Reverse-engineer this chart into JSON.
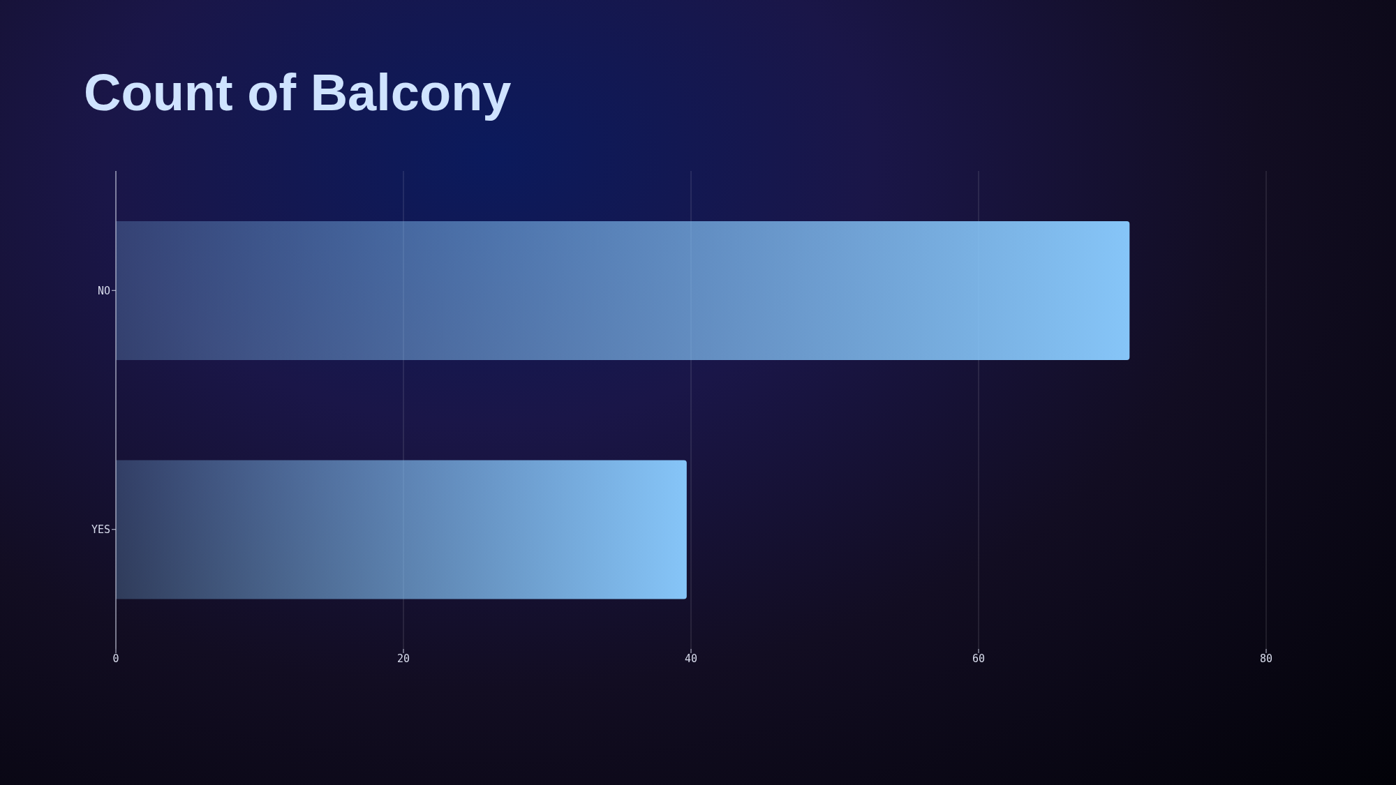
{
  "chart_data": {
    "type": "bar",
    "orientation": "horizontal",
    "title": "Count of Balcony",
    "categories": [
      "NO",
      "YES"
    ],
    "values": [
      70.5,
      39.7
    ],
    "color": "#86c5f8",
    "xlim": [
      0,
      80
    ],
    "xticks": [
      0,
      20,
      40,
      60,
      80
    ],
    "grid": "x"
  }
}
